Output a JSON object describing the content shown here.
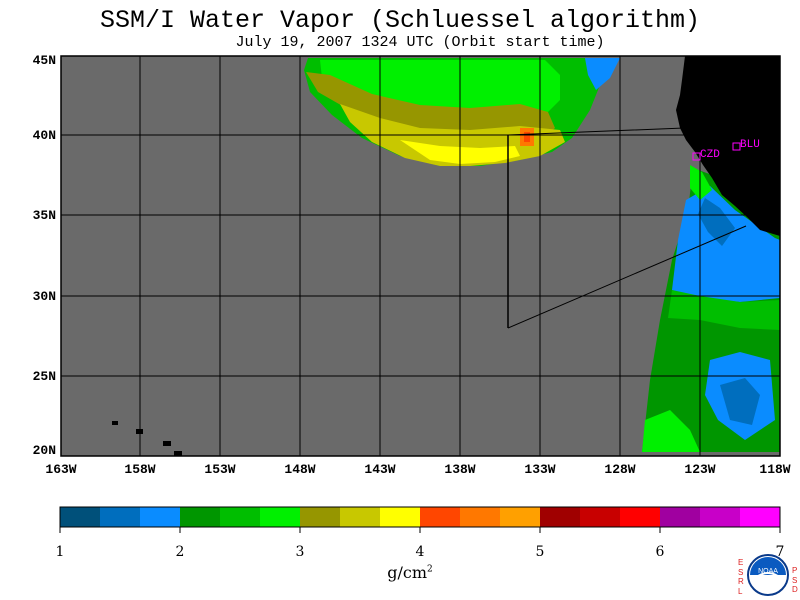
{
  "title": "SSM/I Water Vapor (Schluessel algorithm)",
  "subtitle": "July 19, 2007  1324 UTC  (Orbit start time)",
  "lat_labels": [
    "45N",
    "40N",
    "35N",
    "30N",
    "25N",
    "20N"
  ],
  "lon_labels": [
    "163W",
    "158W",
    "153W",
    "148W",
    "143W",
    "138W",
    "133W",
    "128W",
    "123W",
    "118W"
  ],
  "site_labels": {
    "czd": "CZD",
    "blu": "BLU"
  },
  "colorbar": {
    "ticks": [
      "1",
      "2",
      "3",
      "4",
      "5",
      "6",
      "7"
    ],
    "unit": "g/cm",
    "unit_sup": "2",
    "colors": [
      "#00507a",
      "#006ebe",
      "#0a8cff",
      "#009600",
      "#00be00",
      "#00f000",
      "#969600",
      "#c8c800",
      "#ffff00",
      "#ff4600",
      "#ff7800",
      "#ffa000",
      "#a00000",
      "#c80000",
      "#ff0000",
      "#a000a0",
      "#c800c8",
      "#ff00ff"
    ]
  },
  "colors": {
    "nodata": "#6a6a6a",
    "land": "#000000",
    "grid": "#000000",
    "site_marker": "#ff00ff"
  },
  "logo": {
    "left_letters": "ESRL",
    "right_letters": "PSD",
    "badge": "NOAA"
  }
}
